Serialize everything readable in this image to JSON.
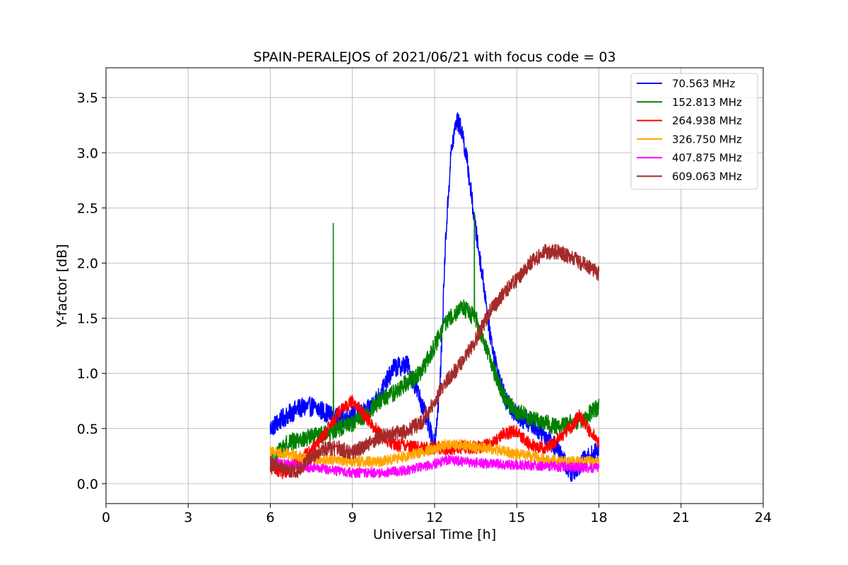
{
  "chart_data": {
    "type": "line",
    "title": "SPAIN-PERALEJOS of 2021/06/21 with focus code = 03",
    "xlabel": "Universal Time [h]",
    "ylabel": "Y-factor [dB]",
    "xlim": [
      0,
      24
    ],
    "ylim": [
      -0.18,
      3.77
    ],
    "xticks": [
      0,
      3,
      6,
      9,
      12,
      15,
      18,
      21,
      24
    ],
    "yticks": [
      0.0,
      0.5,
      1.0,
      1.5,
      2.0,
      2.5,
      3.0,
      3.5
    ],
    "ytick_labels": [
      "0.0",
      "0.5",
      "1.0",
      "1.5",
      "2.0",
      "2.5",
      "3.0",
      "3.5"
    ],
    "grid": true,
    "legend_position": "top-right",
    "series": [
      {
        "name": " 70.563 MHz",
        "color": "#0000ff",
        "noise": 0.09,
        "x": [
          6.0,
          6.5,
          7.0,
          7.5,
          8.0,
          8.5,
          9.0,
          9.5,
          10.0,
          10.5,
          11.0,
          11.5,
          12.0,
          12.2,
          12.4,
          12.6,
          12.8,
          13.0,
          13.2,
          13.5,
          13.8,
          14.0,
          14.3,
          14.6,
          15.0,
          15.5,
          16.0,
          16.5,
          17.0,
          17.5,
          18.0
        ],
        "y": [
          0.5,
          0.6,
          0.68,
          0.7,
          0.65,
          0.58,
          0.62,
          0.65,
          0.8,
          1.05,
          1.08,
          0.75,
          0.35,
          0.9,
          2.2,
          3.0,
          3.3,
          3.2,
          2.9,
          2.3,
          1.8,
          1.4,
          1.0,
          0.75,
          0.62,
          0.55,
          0.45,
          0.3,
          0.1,
          0.22,
          0.3
        ]
      },
      {
        "name": "152.813 MHz",
        "color": "#008000",
        "noise": 0.08,
        "x": [
          6.0,
          6.5,
          7.0,
          7.5,
          8.0,
          8.5,
          9.0,
          9.5,
          10.0,
          10.5,
          11.0,
          11.5,
          12.0,
          12.5,
          13.0,
          13.5,
          13.8,
          14.2,
          14.6,
          15.0,
          15.5,
          16.0,
          16.5,
          17.0,
          17.5,
          18.0
        ],
        "y": [
          0.2,
          0.35,
          0.4,
          0.42,
          0.45,
          0.5,
          0.55,
          0.62,
          0.75,
          0.82,
          0.92,
          1.0,
          1.25,
          1.5,
          1.6,
          1.5,
          1.3,
          1.0,
          0.75,
          0.65,
          0.6,
          0.55,
          0.52,
          0.55,
          0.6,
          0.7
        ],
        "spikes": [
          [
            8.3,
            2.36
          ],
          [
            13.45,
            2.46
          ]
        ]
      },
      {
        "name": "264.938 MHz",
        "color": "#ff0000",
        "noise": 0.06,
        "x": [
          6.0,
          6.5,
          7.0,
          7.5,
          8.0,
          8.5,
          9.0,
          9.5,
          10.0,
          10.5,
          11.0,
          11.5,
          12.0,
          12.5,
          13.0,
          13.5,
          14.0,
          14.5,
          15.0,
          15.5,
          16.0,
          16.5,
          17.0,
          17.3,
          17.6,
          18.0
        ],
        "y": [
          0.15,
          0.1,
          0.2,
          0.3,
          0.45,
          0.65,
          0.75,
          0.6,
          0.45,
          0.35,
          0.35,
          0.32,
          0.33,
          0.32,
          0.33,
          0.33,
          0.35,
          0.45,
          0.48,
          0.35,
          0.32,
          0.4,
          0.52,
          0.62,
          0.5,
          0.38
        ]
      },
      {
        "name": "326.750 MHz",
        "color": "#ffa500",
        "noise": 0.05,
        "x": [
          6.0,
          7.0,
          8.0,
          9.0,
          10.0,
          11.0,
          12.0,
          12.5,
          13.0,
          14.0,
          15.0,
          16.0,
          17.0,
          18.0
        ],
        "y": [
          0.3,
          0.25,
          0.22,
          0.2,
          0.2,
          0.25,
          0.32,
          0.36,
          0.35,
          0.32,
          0.27,
          0.22,
          0.2,
          0.2
        ]
      },
      {
        "name": "407.875 MHz",
        "color": "#ff00ff",
        "noise": 0.045,
        "x": [
          6.0,
          7.0,
          8.0,
          9.0,
          10.0,
          11.0,
          12.0,
          12.5,
          13.0,
          14.0,
          15.0,
          16.0,
          17.0,
          18.0
        ],
        "y": [
          0.2,
          0.16,
          0.13,
          0.1,
          0.1,
          0.12,
          0.18,
          0.22,
          0.2,
          0.18,
          0.17,
          0.16,
          0.15,
          0.14
        ]
      },
      {
        "name": "609.063 MHz",
        "color": "#a52a2a",
        "noise": 0.07,
        "x": [
          6.0,
          6.5,
          7.0,
          7.5,
          8.0,
          8.5,
          9.0,
          9.5,
          10.0,
          10.5,
          11.0,
          11.5,
          12.0,
          12.5,
          13.0,
          13.5,
          14.0,
          14.5,
          15.0,
          15.5,
          16.0,
          16.5,
          17.0,
          17.5,
          18.0
        ],
        "y": [
          0.18,
          0.12,
          0.12,
          0.25,
          0.32,
          0.32,
          0.28,
          0.35,
          0.42,
          0.45,
          0.48,
          0.55,
          0.75,
          0.95,
          1.1,
          1.3,
          1.55,
          1.72,
          1.85,
          2.0,
          2.1,
          2.1,
          2.05,
          1.98,
          1.9
        ]
      }
    ]
  }
}
